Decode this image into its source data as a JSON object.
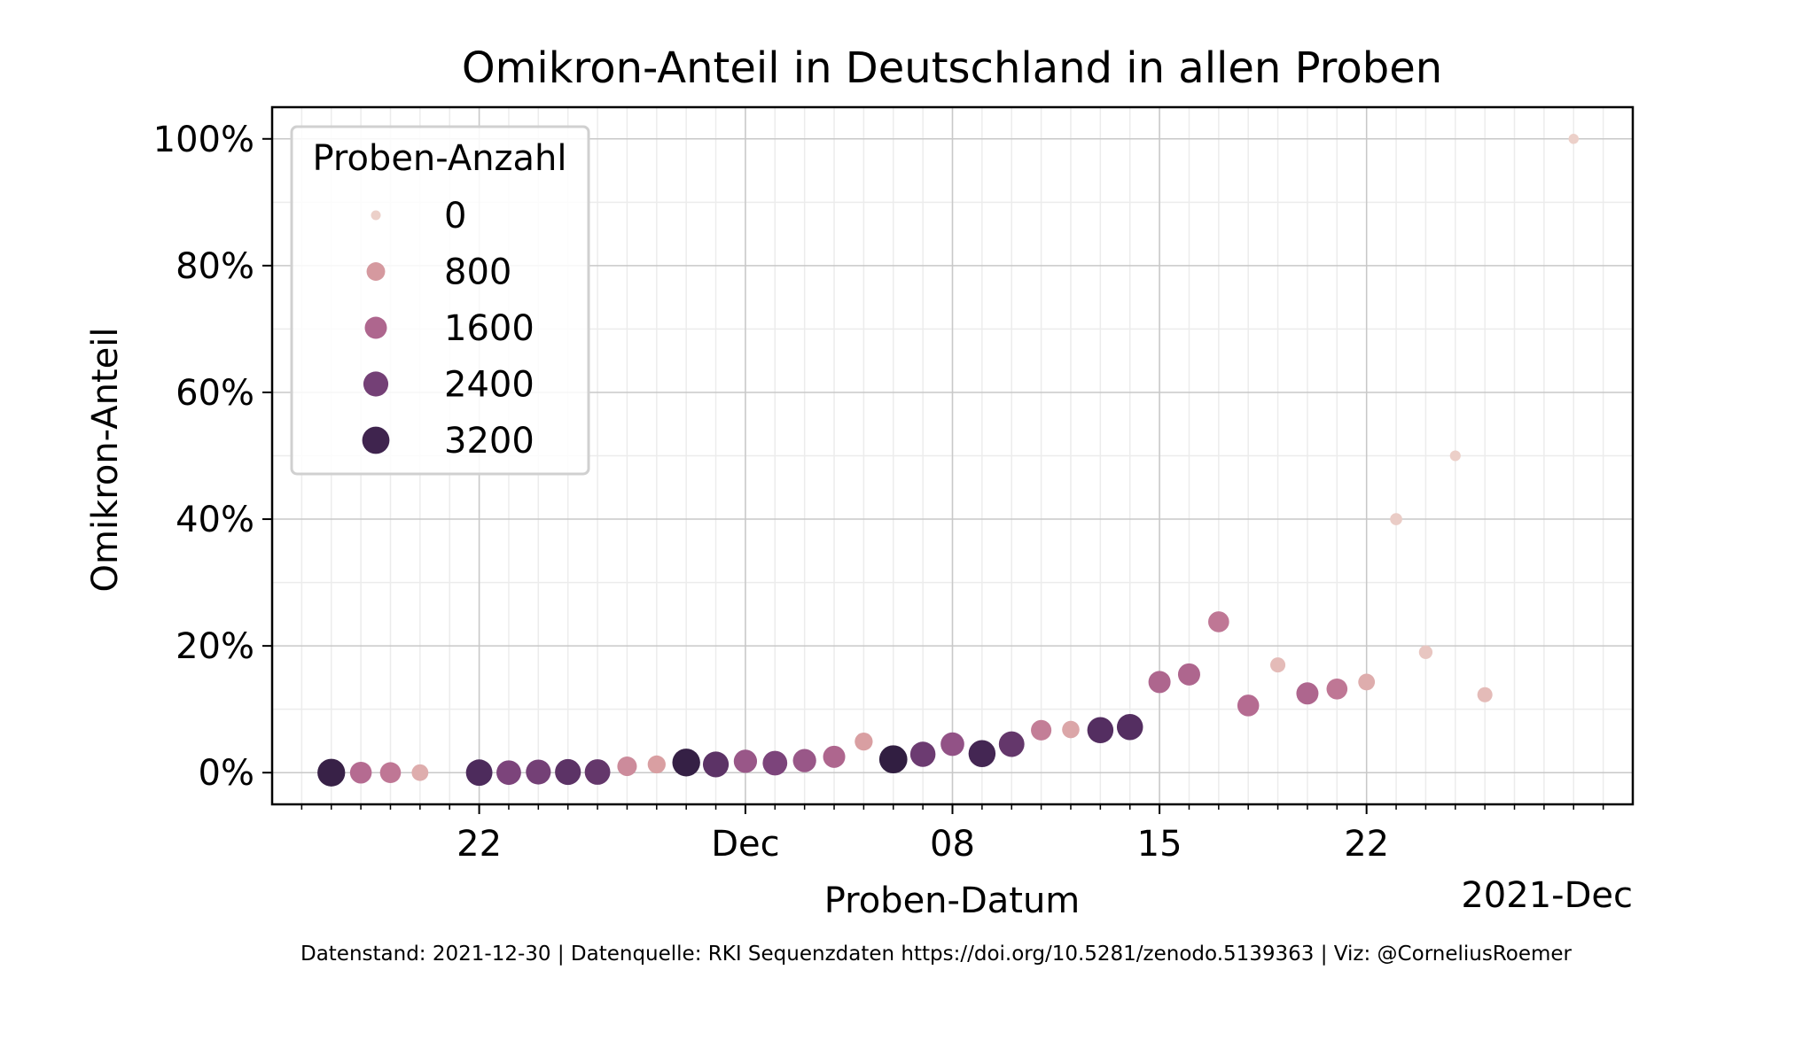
{
  "chart_data": {
    "type": "scatter",
    "title": "Omikron-Anteil in Deutschland in allen Proben",
    "xlabel": "Proben-Datum",
    "ylabel": "Omikron-Anteil",
    "x_offset_label": "2021-Dec",
    "caption": "Datenstand: 2021-12-30 | Datenquelle: RKI Sequenzdaten https://doi.org/10.5281/zenodo.5139363 | Viz: @CorneliusRoemer",
    "x_type": "date",
    "xlim": [
      "2021-11-15",
      "2021-12-31"
    ],
    "ylim": [
      -0.05,
      1.05
    ],
    "y_ticks": [
      0,
      0.2,
      0.4,
      0.6,
      0.8,
      1.0
    ],
    "y_tick_labels": [
      "0%",
      "20%",
      "40%",
      "60%",
      "80%",
      "100%"
    ],
    "x_ticks": [
      "2021-11-22",
      "2021-12-01",
      "2021-12-08",
      "2021-12-15",
      "2021-12-22"
    ],
    "x_tick_labels": [
      "22",
      "Dec",
      "08",
      "15",
      "22"
    ],
    "grid": true,
    "legend": {
      "title": "Proben-Anzahl",
      "placement": "top-left",
      "entries": [
        {
          "label": "0",
          "count": 0
        },
        {
          "label": "800",
          "count": 800
        },
        {
          "label": "1600",
          "count": 1600
        },
        {
          "label": "2400",
          "count": 2400
        },
        {
          "label": "3200",
          "count": 3200
        }
      ]
    },
    "size_range": [
      0,
      3600
    ],
    "color_ramp": [
      "#ecd0c9",
      "#d89ea1",
      "#b96e92",
      "#874a82",
      "#4e2b5d",
      "#2c1c3c"
    ],
    "series": [
      {
        "name": "Proben-Anzahl",
        "points": [
          {
            "x": "2021-11-17",
            "y": 0.0,
            "count": 3350
          },
          {
            "x": "2021-11-18",
            "y": 0.0,
            "count": 1500
          },
          {
            "x": "2021-11-19",
            "y": 0.0,
            "count": 1300
          },
          {
            "x": "2021-11-20",
            "y": 0.0,
            "count": 500
          },
          {
            "x": "2021-11-22",
            "y": 0.0,
            "count": 2900
          },
          {
            "x": "2021-11-23",
            "y": 0.0,
            "count": 2300
          },
          {
            "x": "2021-11-24",
            "y": 0.001,
            "count": 2400
          },
          {
            "x": "2021-11-25",
            "y": 0.001,
            "count": 2700
          },
          {
            "x": "2021-11-26",
            "y": 0.001,
            "count": 2600
          },
          {
            "x": "2021-11-27",
            "y": 0.01,
            "count": 1000
          },
          {
            "x": "2021-11-28",
            "y": 0.013,
            "count": 700
          },
          {
            "x": "2021-11-29",
            "y": 0.016,
            "count": 3400
          },
          {
            "x": "2021-11-30",
            "y": 0.013,
            "count": 2700
          },
          {
            "x": "2021-12-01",
            "y": 0.018,
            "count": 1900
          },
          {
            "x": "2021-12-02",
            "y": 0.015,
            "count": 2300
          },
          {
            "x": "2021-12-03",
            "y": 0.019,
            "count": 1900
          },
          {
            "x": "2021-12-04",
            "y": 0.025,
            "count": 1600
          },
          {
            "x": "2021-12-05",
            "y": 0.049,
            "count": 700
          },
          {
            "x": "2021-12-06",
            "y": 0.021,
            "count": 3500
          },
          {
            "x": "2021-12-07",
            "y": 0.029,
            "count": 2500
          },
          {
            "x": "2021-12-08",
            "y": 0.045,
            "count": 2000
          },
          {
            "x": "2021-12-09",
            "y": 0.03,
            "count": 3100
          },
          {
            "x": "2021-12-10",
            "y": 0.045,
            "count": 2600
          },
          {
            "x": "2021-12-11",
            "y": 0.067,
            "count": 1200
          },
          {
            "x": "2021-12-12",
            "y": 0.068,
            "count": 600
          },
          {
            "x": "2021-12-13",
            "y": 0.067,
            "count": 2800
          },
          {
            "x": "2021-12-14",
            "y": 0.072,
            "count": 2800
          },
          {
            "x": "2021-12-15",
            "y": 0.143,
            "count": 1600
          },
          {
            "x": "2021-12-16",
            "y": 0.155,
            "count": 1600
          },
          {
            "x": "2021-12-17",
            "y": 0.238,
            "count": 1300
          },
          {
            "x": "2021-12-18",
            "y": 0.106,
            "count": 1500
          },
          {
            "x": "2021-12-19",
            "y": 0.17,
            "count": 300
          },
          {
            "x": "2021-12-20",
            "y": 0.125,
            "count": 1600
          },
          {
            "x": "2021-12-21",
            "y": 0.132,
            "count": 1300
          },
          {
            "x": "2021-12-22",
            "y": 0.143,
            "count": 500
          },
          {
            "x": "2021-12-23",
            "y": 0.4,
            "count": 60
          },
          {
            "x": "2021-12-24",
            "y": 0.19,
            "count": 150
          },
          {
            "x": "2021-12-25",
            "y": 0.5,
            "count": 10
          },
          {
            "x": "2021-12-26",
            "y": 0.123,
            "count": 300
          },
          {
            "x": "2021-12-29",
            "y": 1.0,
            "count": 2
          }
        ]
      }
    ]
  }
}
